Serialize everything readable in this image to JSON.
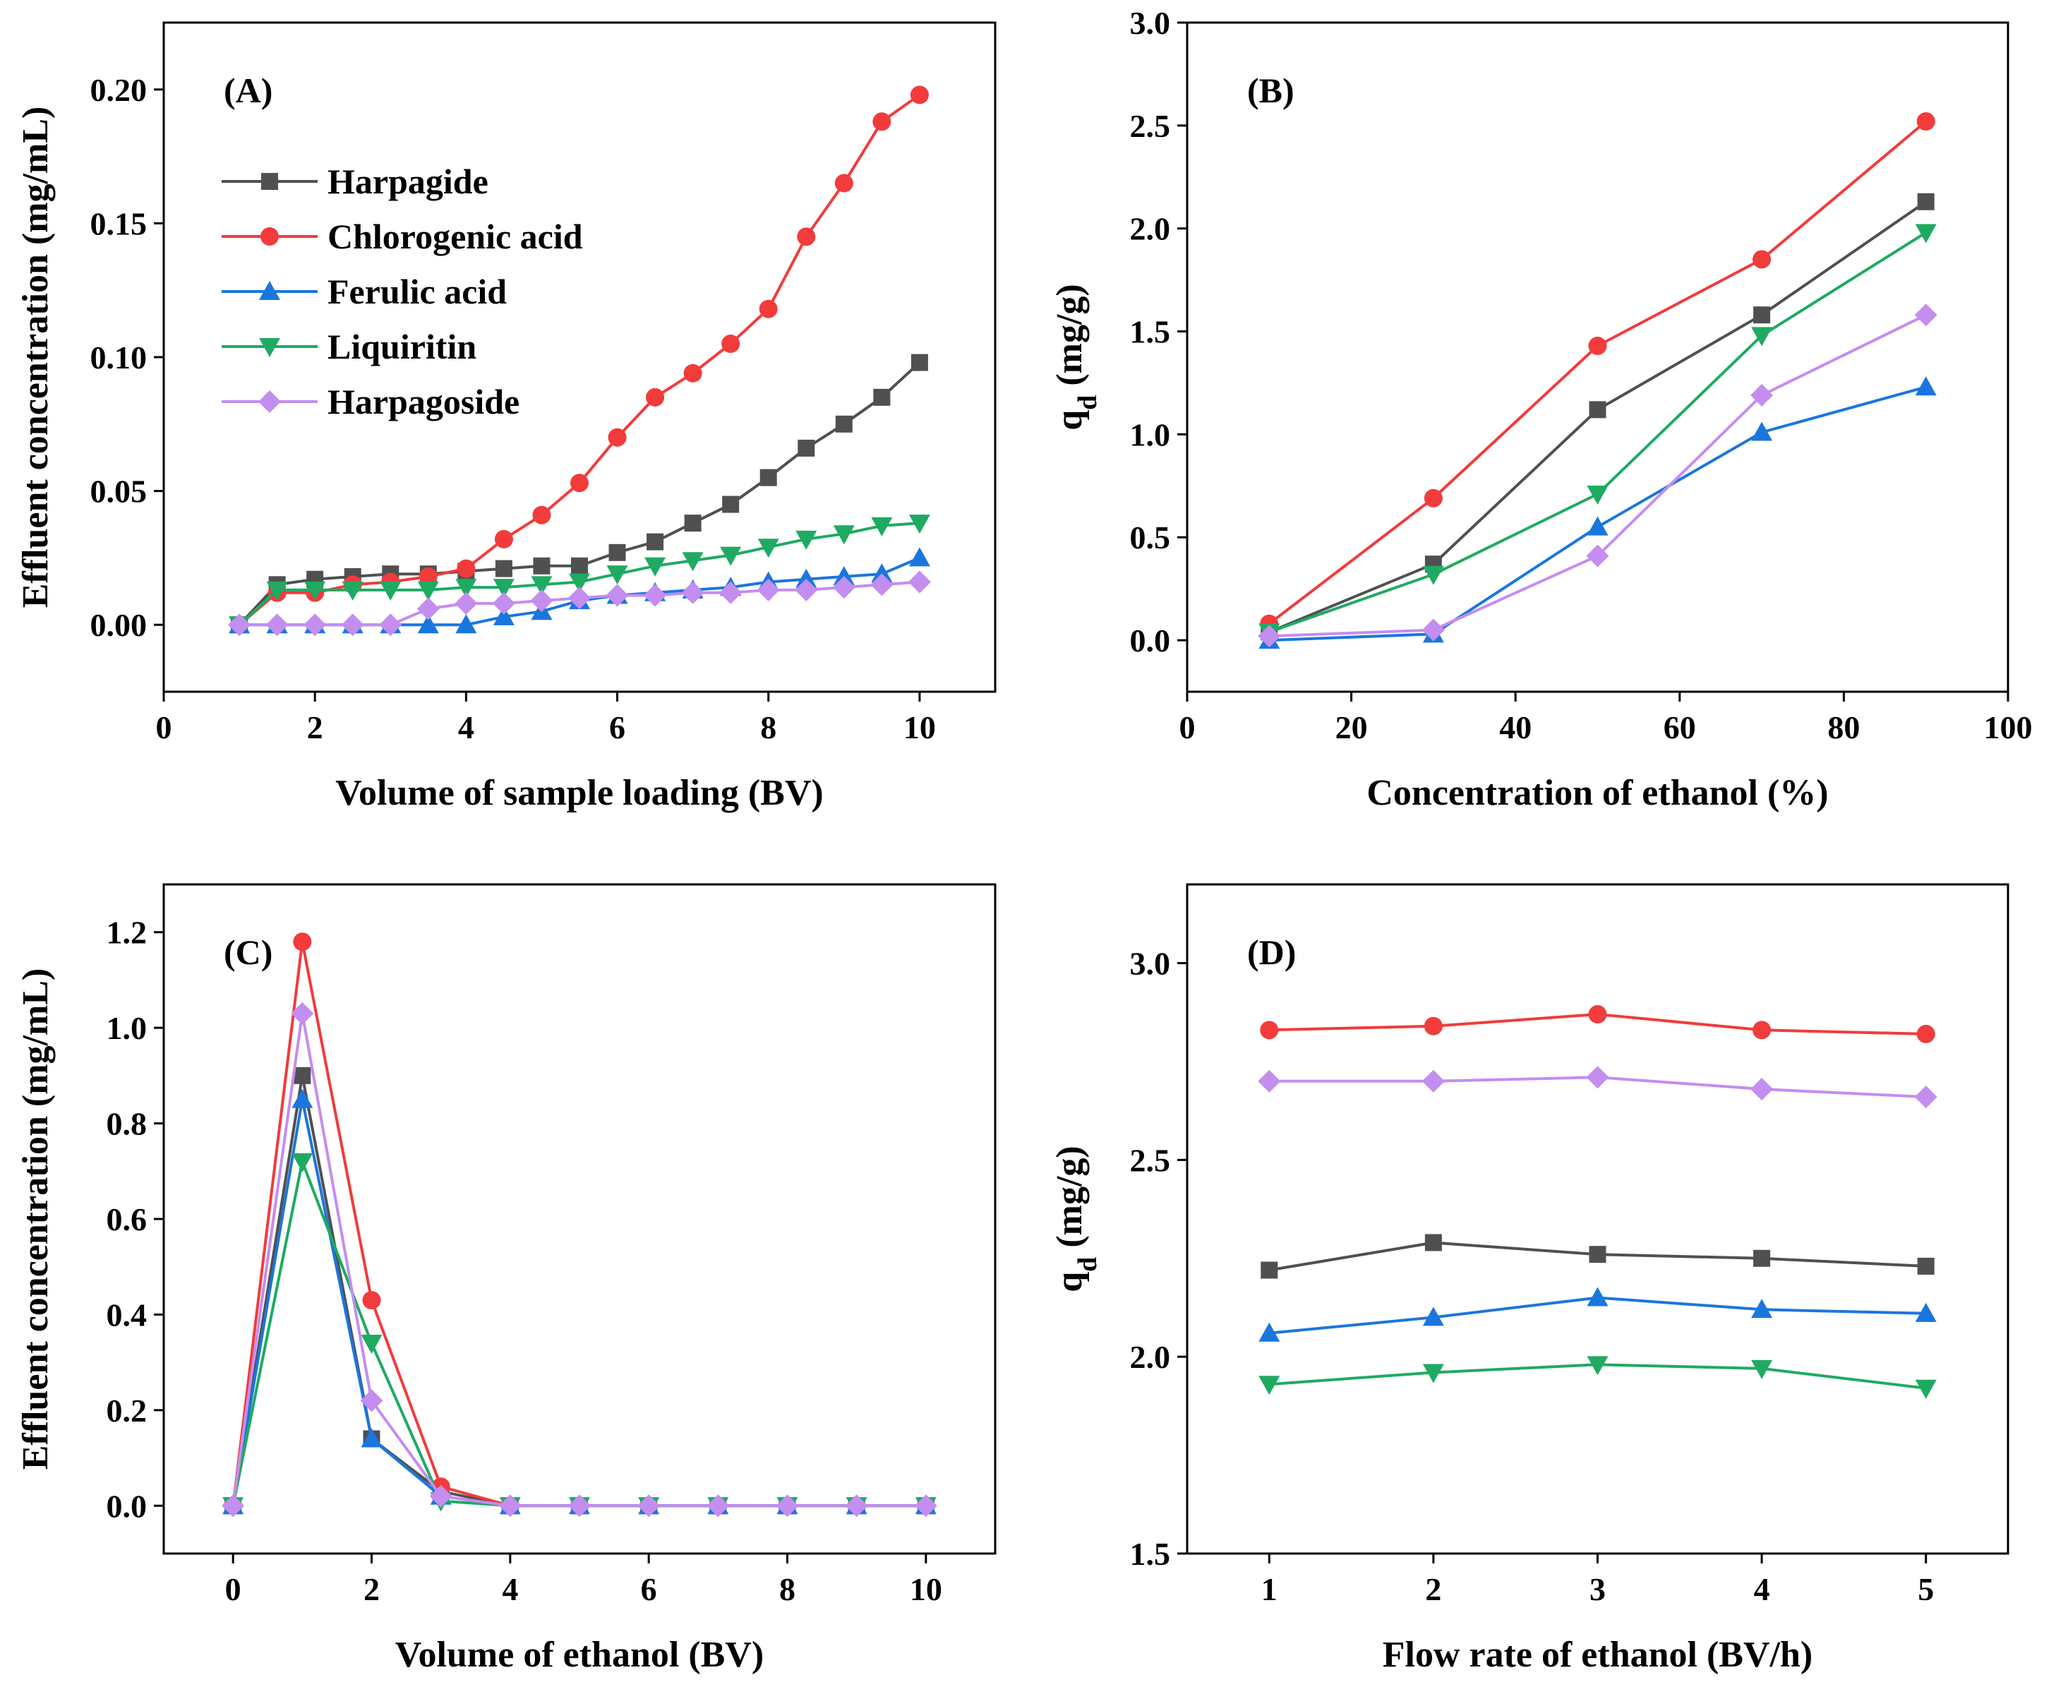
{
  "series_names": [
    "Harpagide",
    "Chlorogenic acid",
    "Ferulic acid",
    "Liquiritin",
    "Harpagoside"
  ],
  "series_colors": [
    "#505050",
    "#f23b3b",
    "#1a76dd",
    "#1faa62",
    "#c48df0"
  ],
  "series_markers": [
    "square",
    "circle",
    "triangle-up",
    "triangle-down",
    "diamond"
  ],
  "chart_data": [
    {
      "id": "A",
      "panel_label": "(A)",
      "type": "line",
      "xlabel": "Volume of sample loading (BV)",
      "ylabel": "Effluent concentration (mg/mL)",
      "xlim": [
        0,
        11
      ],
      "ylim": [
        -0.025,
        0.225
      ],
      "xticks": [
        0,
        2,
        4,
        6,
        8,
        10
      ],
      "yticks": [
        0.0,
        0.05,
        0.1,
        0.15,
        0.2
      ],
      "tick_decimals": [
        0,
        2
      ],
      "legend": "upper-left",
      "x": [
        1,
        1.5,
        2,
        2.5,
        3,
        3.5,
        4,
        4.5,
        5,
        5.5,
        6,
        6.5,
        7,
        7.5,
        8,
        8.5,
        9,
        9.5,
        10
      ],
      "series": [
        {
          "name": "Harpagide",
          "values": [
            0.0,
            0.015,
            0.017,
            0.018,
            0.019,
            0.019,
            0.02,
            0.021,
            0.022,
            0.022,
            0.027,
            0.031,
            0.038,
            0.045,
            0.055,
            0.066,
            0.075,
            0.085,
            0.098
          ]
        },
        {
          "name": "Chlorogenic acid",
          "values": [
            0.0,
            0.012,
            0.012,
            0.015,
            0.016,
            0.018,
            0.021,
            0.032,
            0.041,
            0.053,
            0.07,
            0.085,
            0.094,
            0.105,
            0.118,
            0.145,
            0.165,
            0.188,
            0.198
          ]
        },
        {
          "name": "Ferulic acid",
          "values": [
            0.0,
            0.0,
            0.0,
            0.0,
            0.0,
            0.0,
            0.0,
            0.003,
            0.005,
            0.009,
            0.011,
            0.012,
            0.013,
            0.014,
            0.016,
            0.017,
            0.018,
            0.019,
            0.025
          ]
        },
        {
          "name": "Liquiritin",
          "values": [
            0.0,
            0.013,
            0.013,
            0.013,
            0.013,
            0.013,
            0.014,
            0.014,
            0.015,
            0.016,
            0.019,
            0.022,
            0.024,
            0.026,
            0.029,
            0.032,
            0.034,
            0.037,
            0.038
          ]
        },
        {
          "name": "Harpagoside",
          "values": [
            0.0,
            0.0,
            0.0,
            0.0,
            0.0,
            0.006,
            0.008,
            0.008,
            0.009,
            0.01,
            0.011,
            0.011,
            0.012,
            0.012,
            0.013,
            0.013,
            0.014,
            0.015,
            0.016
          ]
        }
      ]
    },
    {
      "id": "B",
      "panel_label": "(B)",
      "type": "line",
      "xlabel": "Concentration of ethanol (%)",
      "ylabel": "qd (mg/g)",
      "ylabel_main": "q",
      "ylabel_sub": "d",
      "ylabel_rest": " (mg/g)",
      "xlim": [
        0,
        100
      ],
      "ylim": [
        -0.25,
        3.0
      ],
      "xticks": [
        0,
        20,
        40,
        60,
        80,
        100
      ],
      "yticks": [
        0.0,
        0.5,
        1.0,
        1.5,
        2.0,
        2.5,
        3.0
      ],
      "tick_decimals": [
        0,
        1
      ],
      "x": [
        10,
        30,
        50,
        70,
        90
      ],
      "series": [
        {
          "name": "Harpagide",
          "values": [
            0.04,
            0.37,
            1.12,
            1.58,
            2.13
          ]
        },
        {
          "name": "Chlorogenic acid",
          "values": [
            0.08,
            0.69,
            1.43,
            1.85,
            2.52
          ]
        },
        {
          "name": "Ferulic acid",
          "values": [
            0.0,
            0.03,
            0.55,
            1.01,
            1.23
          ]
        },
        {
          "name": "Liquiritin",
          "values": [
            0.04,
            0.32,
            0.71,
            1.48,
            1.98
          ]
        },
        {
          "name": "Harpagoside",
          "values": [
            0.02,
            0.05,
            0.41,
            1.19,
            1.58
          ]
        }
      ]
    },
    {
      "id": "C",
      "panel_label": "(C)",
      "type": "line",
      "xlabel": "Volume of ethanol (BV)",
      "ylabel": "Effluent concentration (mg/mL)",
      "xlim": [
        -1,
        11
      ],
      "ylim": [
        -0.1,
        1.3
      ],
      "xticks": [
        0,
        2,
        4,
        6,
        8,
        10
      ],
      "yticks": [
        0.0,
        0.2,
        0.4,
        0.6,
        0.8,
        1.0,
        1.2
      ],
      "tick_decimals": [
        0,
        1
      ],
      "x": [
        0,
        1,
        2,
        3,
        4,
        5,
        6,
        7,
        8,
        9,
        10
      ],
      "series": [
        {
          "name": "Harpagide",
          "values": [
            0,
            0.9,
            0.14,
            0.03,
            0,
            0,
            0,
            0,
            0,
            0,
            0
          ]
        },
        {
          "name": "Chlorogenic acid",
          "values": [
            0,
            1.18,
            0.43,
            0.04,
            0,
            0,
            0,
            0,
            0,
            0,
            0
          ]
        },
        {
          "name": "Ferulic acid",
          "values": [
            0,
            0.85,
            0.14,
            0.02,
            0,
            0,
            0,
            0,
            0,
            0,
            0
          ]
        },
        {
          "name": "Liquiritin",
          "values": [
            0,
            0.72,
            0.34,
            0.01,
            0,
            0,
            0,
            0,
            0,
            0,
            0
          ]
        },
        {
          "name": "Harpagoside",
          "values": [
            0,
            1.03,
            0.22,
            0.02,
            0,
            0,
            0,
            0,
            0,
            0,
            0
          ]
        }
      ]
    },
    {
      "id": "D",
      "panel_label": "(D)",
      "type": "line",
      "xlabel": "Flow rate of ethanol (BV/h)",
      "ylabel": "qd (mg/g)",
      "ylabel_main": "q",
      "ylabel_sub": "d",
      "ylabel_rest": " (mg/g)",
      "xlim": [
        0.5,
        5.5
      ],
      "ylim": [
        1.5,
        3.2
      ],
      "xticks": [
        1,
        2,
        3,
        4,
        5
      ],
      "yticks": [
        1.5,
        2.0,
        2.5,
        3.0
      ],
      "tick_decimals": [
        0,
        1
      ],
      "x": [
        1,
        2,
        3,
        4,
        5
      ],
      "series": [
        {
          "name": "Harpagide",
          "values": [
            2.22,
            2.29,
            2.26,
            2.25,
            2.23
          ]
        },
        {
          "name": "Chlorogenic acid",
          "values": [
            2.83,
            2.84,
            2.87,
            2.83,
            2.82
          ]
        },
        {
          "name": "Ferulic acid",
          "values": [
            2.06,
            2.1,
            2.15,
            2.12,
            2.11
          ]
        },
        {
          "name": "Liquiritin",
          "values": [
            1.93,
            1.96,
            1.98,
            1.97,
            1.92
          ]
        },
        {
          "name": "Harpagoside",
          "values": [
            2.7,
            2.7,
            2.71,
            2.68,
            2.66
          ]
        }
      ]
    }
  ]
}
